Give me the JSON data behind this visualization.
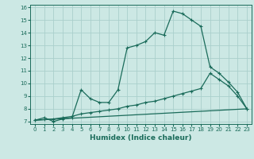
{
  "title": "",
  "xlabel": "Humidex (Indice chaleur)",
  "xlim": [
    -0.5,
    23.5
  ],
  "ylim": [
    6.8,
    16.2
  ],
  "yticks": [
    7,
    8,
    9,
    10,
    11,
    12,
    13,
    14,
    15,
    16
  ],
  "xticks": [
    0,
    1,
    2,
    3,
    4,
    5,
    6,
    7,
    8,
    9,
    10,
    11,
    12,
    13,
    14,
    15,
    16,
    17,
    18,
    19,
    20,
    21,
    22,
    23
  ],
  "bg_color": "#cce8e4",
  "grid_color": "#aacfcc",
  "line_color": "#1a6b5a",
  "line1_x": [
    0,
    1,
    2,
    3,
    4,
    5,
    6,
    7,
    8,
    9,
    10,
    11,
    12,
    13,
    14,
    15,
    16,
    17,
    18,
    19,
    20,
    21,
    22,
    23
  ],
  "line1_y": [
    7.1,
    7.3,
    7.0,
    7.2,
    7.3,
    9.5,
    8.8,
    8.5,
    8.5,
    9.5,
    12.8,
    13.0,
    13.3,
    14.0,
    13.8,
    15.7,
    15.5,
    15.0,
    14.5,
    11.3,
    10.8,
    10.1,
    9.3,
    8.0
  ],
  "line2_x": [
    0,
    1,
    2,
    3,
    4,
    5,
    6,
    7,
    8,
    9,
    10,
    11,
    12,
    13,
    14,
    15,
    16,
    17,
    18,
    19,
    20,
    21,
    22,
    23
  ],
  "line2_y": [
    7.1,
    7.15,
    7.2,
    7.3,
    7.4,
    7.6,
    7.7,
    7.8,
    7.9,
    8.0,
    8.2,
    8.3,
    8.5,
    8.6,
    8.8,
    9.0,
    9.2,
    9.4,
    9.6,
    10.8,
    10.3,
    9.8,
    9.0,
    8.0
  ],
  "line3_x": [
    0,
    23
  ],
  "line3_y": [
    7.1,
    8.0
  ]
}
